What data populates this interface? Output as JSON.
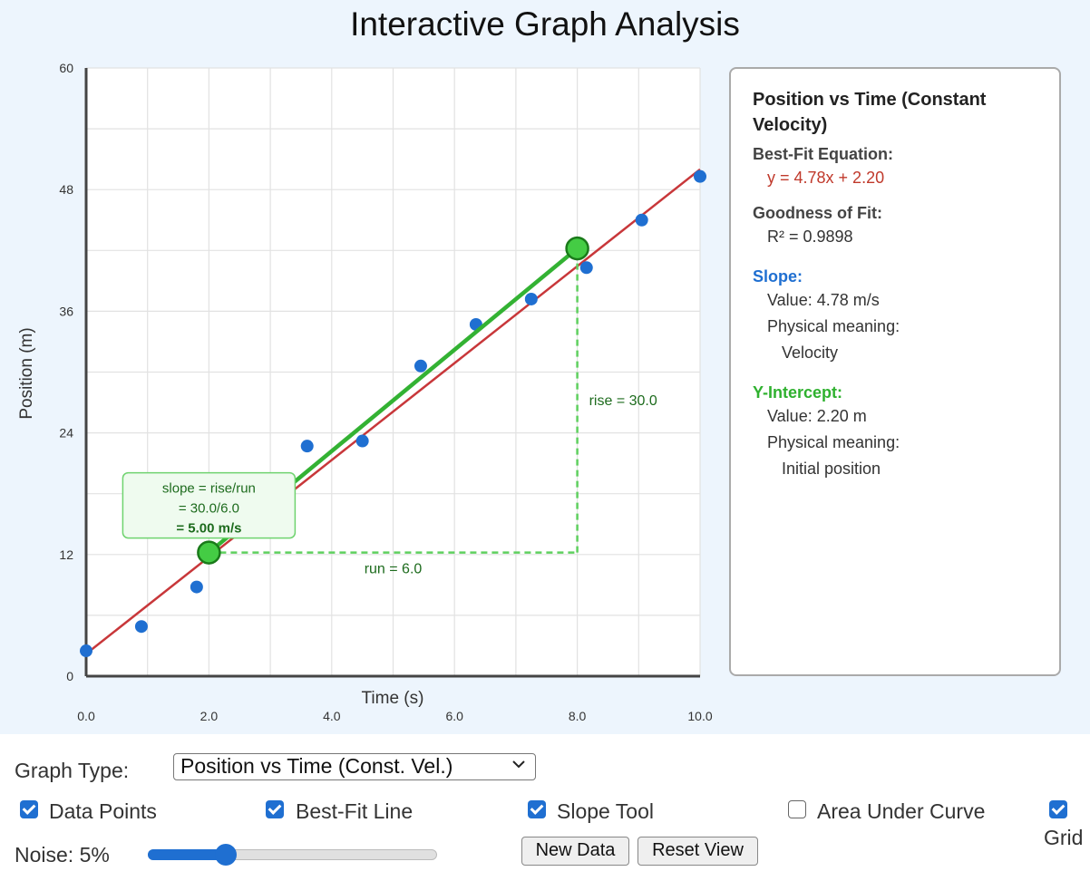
{
  "page_title": "Interactive Graph Analysis",
  "colors": {
    "data_point": "#1f6fd1",
    "best_fit_line": "#c8373a",
    "slope_line": "#33b233",
    "slope_handle_fill": "#44cc44",
    "slope_handle_stroke": "#1a7a1a",
    "dashed_guides": "#5fd05f",
    "annotation_text": "#1d6b1d",
    "panel_equation": "#c0392b",
    "panel_slope_heading": "#1f6fd1",
    "panel_intercept_heading": "#2fb12f",
    "accent": "#1f6fd1"
  },
  "chart_data": {
    "type": "scatter",
    "title": "",
    "xlabel": "Time (s)",
    "ylabel": "Position (m)",
    "xlim": [
      0,
      10
    ],
    "ylim": [
      0,
      60
    ],
    "x_ticks": [
      "0.0",
      "2.0",
      "4.0",
      "6.0",
      "8.0",
      "10.0"
    ],
    "y_ticks": [
      "0",
      "12",
      "24",
      "36",
      "48",
      "60"
    ],
    "grid": true,
    "points": [
      {
        "x": 0.0,
        "y": 2.5
      },
      {
        "x": 0.9,
        "y": 4.9
      },
      {
        "x": 1.8,
        "y": 8.8
      },
      {
        "x": 3.6,
        "y": 22.7
      },
      {
        "x": 4.5,
        "y": 23.2
      },
      {
        "x": 5.45,
        "y": 30.6
      },
      {
        "x": 6.35,
        "y": 34.7
      },
      {
        "x": 7.25,
        "y": 37.2
      },
      {
        "x": 8.15,
        "y": 40.3
      },
      {
        "x": 9.05,
        "y": 45.0
      },
      {
        "x": 10.0,
        "y": 49.3
      }
    ],
    "best_fit": {
      "slope": 4.78,
      "intercept": 2.2,
      "x_range": [
        0,
        10
      ]
    },
    "slope_tool": {
      "p1": {
        "x": 2.0,
        "y": 12.2
      },
      "p2": {
        "x": 8.0,
        "y": 42.2
      },
      "rise_label": "rise = 30.0",
      "run_label": "run = 6.0",
      "annotation": [
        "slope = rise/run",
        "= 30.0/6.0",
        "= 5.00 m/s"
      ]
    }
  },
  "info_panel": {
    "title": "Position vs Time (Constant Velocity)",
    "equation_heading": "Best-Fit Equation:",
    "equation": "y = 4.78x + 2.20",
    "fit_heading": "Goodness of Fit:",
    "r_squared": "R² = 0.9898",
    "slope_heading": "Slope:",
    "slope_value": "Value: 4.78 m/s",
    "slope_meaning_label": "Physical meaning:",
    "slope_meaning": "Velocity",
    "intercept_heading": "Y-Intercept:",
    "intercept_value": "Value: 2.20 m",
    "intercept_meaning_label": "Physical meaning:",
    "intercept_meaning": "Initial position"
  },
  "controls": {
    "graph_type_label": "Graph Type:",
    "graph_type_selected": "Position vs Time (Const. Vel.)",
    "checkboxes": {
      "data_points": {
        "label": "Data Points",
        "checked": true
      },
      "best_fit": {
        "label": "Best-Fit Line",
        "checked": true
      },
      "slope_tool": {
        "label": "Slope Tool",
        "checked": true
      },
      "area": {
        "label": "Area Under Curve",
        "checked": false
      },
      "grid": {
        "label": "Grid",
        "checked": true
      }
    },
    "noise_label": "Noise: 5%",
    "noise_value": 0.27,
    "new_data_label": "New Data",
    "reset_view_label": "Reset View"
  }
}
